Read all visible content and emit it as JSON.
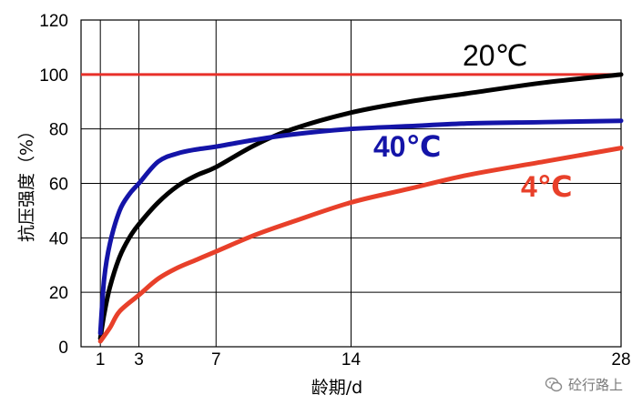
{
  "chart_data": {
    "type": "line",
    "ylabel": "抗压强度（%）",
    "xlabel": "龄期/d",
    "xlim": [
      0,
      28
    ],
    "ylim": [
      0,
      120
    ],
    "x_ticks": [
      1,
      3,
      7,
      14,
      28
    ],
    "y_ticks": [
      0,
      20,
      40,
      60,
      80,
      100,
      120
    ],
    "grid": true,
    "reference_line": {
      "y": 100,
      "color": "#e8302a"
    },
    "series": [
      {
        "name": "20℃",
        "color": "#000000",
        "x": [
          1,
          1.2,
          1.5,
          2,
          2.5,
          3,
          4,
          5,
          6,
          7,
          9,
          11,
          14,
          17,
          20,
          24,
          28
        ],
        "y": [
          3,
          12,
          22,
          33,
          40,
          45,
          53,
          59,
          63,
          66,
          74,
          80,
          86,
          90,
          93,
          97,
          100
        ]
      },
      {
        "name": "40℃",
        "color": "#1414a8",
        "x": [
          1,
          1.2,
          1.5,
          2,
          2.5,
          3,
          4,
          5,
          6,
          7,
          9,
          11,
          14,
          17,
          20,
          24,
          28
        ],
        "y": [
          5,
          25,
          38,
          50,
          56,
          60,
          68,
          71,
          72.5,
          73.5,
          76,
          78,
          80,
          81,
          82,
          82.5,
          83
        ]
      },
      {
        "name": "4℃",
        "color": "#e8402a",
        "x": [
          1,
          1.5,
          2,
          3,
          4,
          5,
          6,
          7,
          9,
          11,
          14,
          17,
          20,
          24,
          28
        ],
        "y": [
          2,
          7,
          13,
          19,
          25,
          29,
          32,
          35,
          41,
          46,
          53,
          58,
          63,
          68,
          73
        ]
      }
    ]
  },
  "watermark": {
    "text": "砼行路上",
    "icon": "wechat-icon"
  }
}
